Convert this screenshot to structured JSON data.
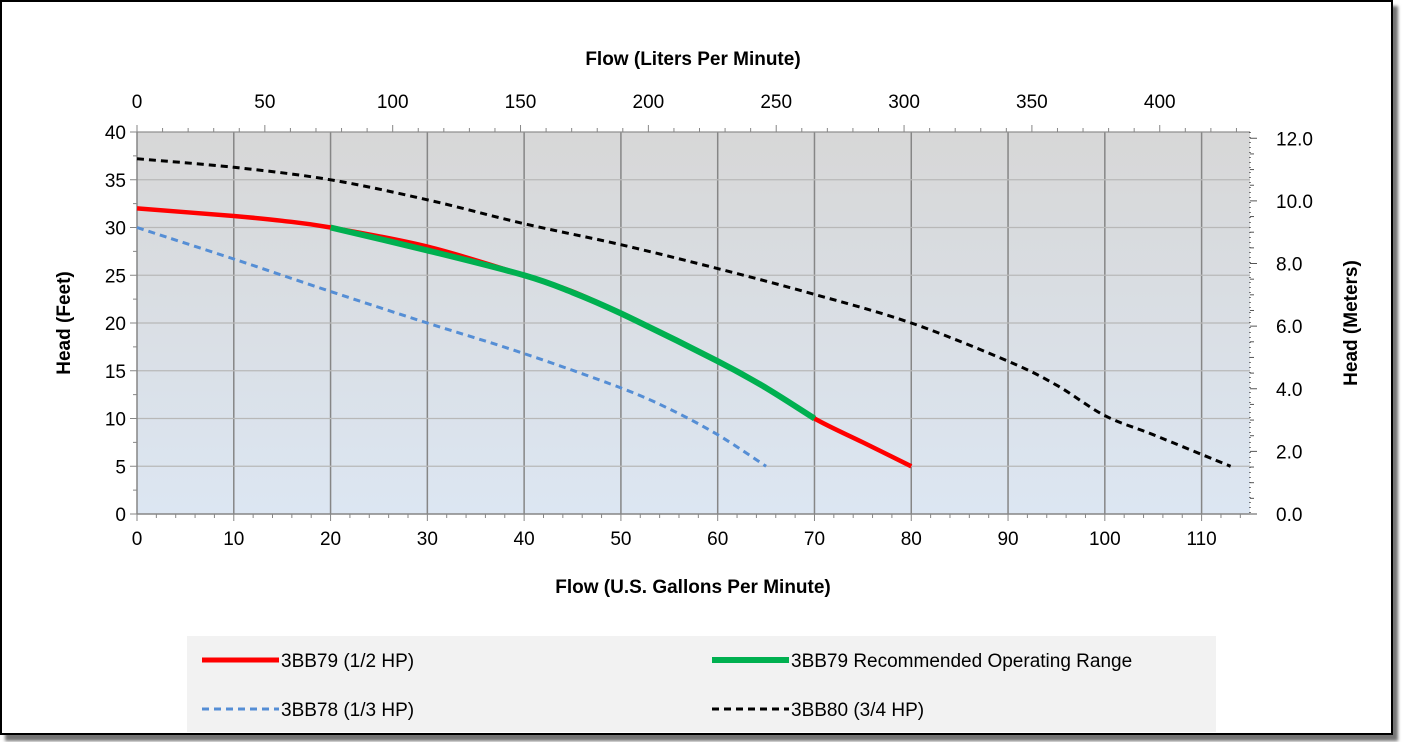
{
  "chart_data": {
    "type": "line",
    "top_axis_title": "Flow (Liters Per Minute)",
    "xlabel": "Flow (U.S. Gallons Per Minute)",
    "ylabel": "Head (Feet)",
    "y2label": "Head (Meters)",
    "xlim": [
      0,
      115
    ],
    "ylim": [
      0,
      40
    ],
    "y2lim": [
      0,
      12.2
    ],
    "x2lim": [
      0,
      435.3
    ],
    "x_ticks": [
      "0",
      "10",
      "20",
      "30",
      "40",
      "50",
      "60",
      "70",
      "80",
      "90",
      "100",
      "110"
    ],
    "x_tick_values": [
      0,
      10,
      20,
      30,
      40,
      50,
      60,
      70,
      80,
      90,
      100,
      110
    ],
    "y_ticks": [
      "0",
      "5",
      "10",
      "15",
      "20",
      "25",
      "30",
      "35",
      "40"
    ],
    "y_tick_values": [
      0,
      5,
      10,
      15,
      20,
      25,
      30,
      35,
      40
    ],
    "x2_ticks": [
      "0",
      "50",
      "100",
      "150",
      "200",
      "250",
      "300",
      "350",
      "400"
    ],
    "x2_tick_values": [
      0,
      50,
      100,
      150,
      200,
      250,
      300,
      350,
      400
    ],
    "y2_ticks": [
      "0.0",
      "2.0",
      "4.0",
      "6.0",
      "8.0",
      "10.0",
      "12.0"
    ],
    "y2_tick_values": [
      0,
      2,
      4,
      6,
      8,
      10,
      12
    ],
    "grid": true,
    "legend_position": "bottom",
    "series": [
      {
        "name": "3BB79 (1/2 HP)",
        "color": "#ff0000",
        "style": "solid",
        "x": [
          0,
          10,
          15,
          20,
          30,
          40,
          45,
          50,
          60,
          65,
          70,
          75,
          80
        ],
        "y": [
          32,
          31.2,
          30.7,
          30,
          28,
          25,
          23.3,
          21,
          16,
          13.2,
          10,
          7.5,
          5
        ]
      },
      {
        "name": "3BB79 Recommended Operating Range",
        "color": "#00b050",
        "style": "solid",
        "x": [
          20,
          30,
          40,
          45,
          50,
          60,
          65,
          70
        ],
        "y": [
          30,
          27.6,
          25,
          23.2,
          21,
          16,
          13.2,
          10
        ]
      },
      {
        "name": "3BB78 (1/3 HP)",
        "color": "#558ed5",
        "style": "dashed",
        "x": [
          0,
          10,
          20,
          30,
          40,
          50,
          55,
          60,
          65
        ],
        "y": [
          30,
          26.7,
          23.3,
          20,
          16.8,
          13.2,
          11,
          8.3,
          5
        ]
      },
      {
        "name": "3BB80 (3/4 HP)",
        "color": "#000000",
        "style": "dashed",
        "x": [
          0,
          10,
          20,
          30,
          40,
          50,
          60,
          70,
          80,
          90,
          95,
          100,
          105,
          113
        ],
        "y": [
          37.2,
          36.3,
          35,
          32.9,
          30.4,
          28.2,
          25.7,
          23,
          20,
          16,
          13.5,
          10.3,
          8.3,
          5
        ]
      }
    ]
  }
}
